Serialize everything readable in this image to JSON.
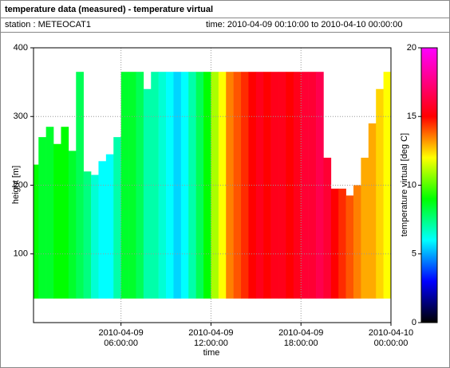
{
  "header": {
    "title": "temperature data (measured) - temperature virtual",
    "station": "station : METEOCAT1",
    "time": "time: 2010-04-09 00:10:00 to 2010-04-10 00:00:00"
  },
  "chart_data": {
    "type": "heatmap",
    "xlabel": "time",
    "ylabel": "height [m]",
    "colorbar_label": "temperature virtual [deg C]",
    "xlim": [
      0.1667,
      24
    ],
    "ylim": [
      0,
      400
    ],
    "xticks": [
      {
        "value": 6,
        "label": "2010-04-09 06:00:00"
      },
      {
        "value": 12,
        "label": "2010-04-09 12:00:00"
      },
      {
        "value": 18,
        "label": "2010-04-09 18:00:00"
      },
      {
        "value": 24,
        "label": "2010-04-10 00:00:00"
      }
    ],
    "yticks": [
      100,
      200,
      300,
      400
    ],
    "grid": true,
    "x_edges": [
      0.1667,
      0.5,
      1,
      1.5,
      2,
      2.5,
      3,
      3.5,
      4,
      4.5,
      5,
      5.5,
      6,
      6.5,
      7,
      7.5,
      8,
      8.5,
      9,
      9.5,
      10,
      10.5,
      11,
      11.5,
      12,
      12.5,
      13,
      13.5,
      14,
      14.5,
      15,
      15.5,
      16,
      16.5,
      17,
      17.5,
      18,
      18.5,
      19,
      19.5,
      20,
      20.5,
      21,
      21.5,
      22,
      22.5,
      23,
      23.5,
      24
    ],
    "base": 35,
    "tops": [
      230,
      270,
      285,
      260,
      285,
      250,
      365,
      220,
      215,
      235,
      245,
      270,
      365,
      365,
      365,
      340,
      365,
      365,
      365,
      365,
      365,
      365,
      365,
      365,
      365,
      365,
      365,
      365,
      365,
      365,
      365,
      365,
      365,
      365,
      365,
      365,
      365,
      365,
      365,
      240,
      195,
      195,
      185,
      200,
      240,
      290,
      340,
      365
    ],
    "values": [
      9,
      8.5,
      8.5,
      9,
      9,
      8.5,
      8,
      7.5,
      6.5,
      6,
      6,
      7,
      8.5,
      8.5,
      8,
      7,
      7,
      6.5,
      6,
      5.5,
      6,
      7,
      8,
      9,
      11,
      12,
      13.5,
      14,
      14.5,
      15,
      15.5,
      15,
      15.5,
      15.5,
      15,
      15.5,
      16,
      16,
      16.5,
      16,
      15,
      14.5,
      14,
      13.5,
      13,
      13,
      12.5,
      12
    ],
    "clim": [
      0,
      20
    ],
    "cticks": [
      0,
      5,
      10,
      15,
      20
    ],
    "colorscale": [
      [
        0,
        "#000000"
      ],
      [
        3,
        "#0000ff"
      ],
      [
        6,
        "#00ffff"
      ],
      [
        9,
        "#00ff00"
      ],
      [
        12,
        "#ffff00"
      ],
      [
        15,
        "#ff0000"
      ],
      [
        20,
        "#ff00ff"
      ]
    ]
  }
}
